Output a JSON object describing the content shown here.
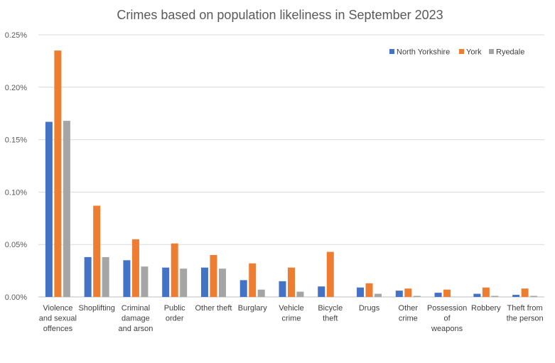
{
  "chart_data": {
    "type": "bar",
    "title": "Crimes based on population likeliness in September 2023",
    "xlabel": "",
    "ylabel": "",
    "ylim": [
      0,
      0.25
    ],
    "y_ticks": [
      "0.00%",
      "0.05%",
      "0.10%",
      "0.15%",
      "0.20%",
      "0.25%"
    ],
    "y_tick_values": [
      0,
      0.05,
      0.1,
      0.15,
      0.2,
      0.25
    ],
    "grid": true,
    "legend_position": "top-right",
    "categories": [
      [
        "Violence",
        "and sexual",
        "offences"
      ],
      [
        "Shoplifting"
      ],
      [
        "Criminal",
        "damage",
        "and arson"
      ],
      [
        "Public",
        "order"
      ],
      [
        "Other theft"
      ],
      [
        "Burglary"
      ],
      [
        "Vehicle",
        "crime"
      ],
      [
        "Bicycle",
        "theft"
      ],
      [
        "Drugs"
      ],
      [
        "Other",
        "crime"
      ],
      [
        "Possession",
        "of",
        "weapons"
      ],
      [
        "Robbery"
      ],
      [
        "Theft from",
        "the person"
      ]
    ],
    "series": [
      {
        "name": "North Yorkshire",
        "color": "#4472C4",
        "values": [
          0.167,
          0.038,
          0.035,
          0.028,
          0.028,
          0.016,
          0.015,
          0.01,
          0.009,
          0.006,
          0.004,
          0.003,
          0.002
        ]
      },
      {
        "name": "York",
        "color": "#ED7D31",
        "values": [
          0.235,
          0.087,
          0.055,
          0.051,
          0.04,
          0.032,
          0.028,
          0.043,
          0.013,
          0.008,
          0.007,
          0.009,
          0.008
        ]
      },
      {
        "name": "Ryedale",
        "color": "#A5A5A5",
        "values": [
          0.168,
          0.038,
          0.029,
          0.027,
          0.027,
          0.007,
          0.005,
          0.0,
          0.003,
          0.001,
          0.0,
          0.001,
          0.001
        ]
      }
    ]
  }
}
